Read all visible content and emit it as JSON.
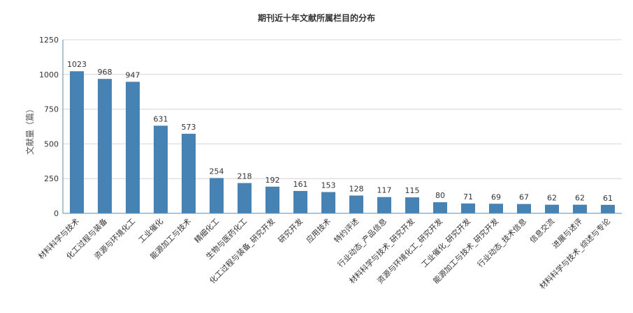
{
  "chart_data": {
    "type": "bar",
    "title": "期刊近十年文献所属栏目的分布",
    "xlabel": "",
    "ylabel": "文献量（篇）",
    "ylim": [
      0,
      1250
    ],
    "yticks": [
      0,
      250,
      500,
      750,
      1000,
      1250
    ],
    "grid": true,
    "legend": "none",
    "bar_color": "#4682b4",
    "categories": [
      "材料科学与技术",
      "化工过程与装备",
      "资源与环境化工",
      "工业催化",
      "能源加工与技术",
      "精细化工",
      "生物与医药化工",
      "化工过程与装备_研究开发",
      "研究开发",
      "应用技术",
      "特约评述",
      "行业动态_产品信息",
      "材料科学与技术_研究开发",
      "资源与环境化工_研究开发",
      "工业催化_研究开发",
      "能源加工与技术_研究开发",
      "行业动态_技术信息",
      "信息交流",
      "进展与述评",
      "材料科学与技术_综述与专论"
    ],
    "values": [
      1023,
      968,
      947,
      631,
      573,
      254,
      218,
      192,
      161,
      153,
      128,
      117,
      115,
      80,
      71,
      69,
      67,
      62,
      62,
      61
    ]
  }
}
